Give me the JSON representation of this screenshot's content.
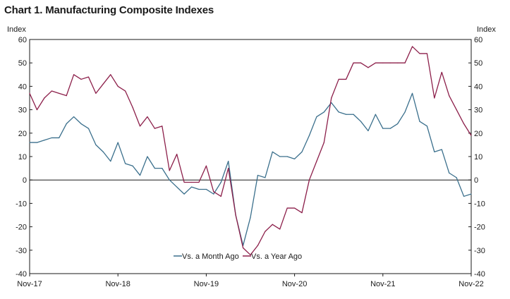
{
  "chart_data": {
    "type": "line",
    "title": "Chart 1. Manufacturing Composite Indexes",
    "ylabel_left": "Index",
    "ylabel_right": "Index",
    "ylim": [
      -40,
      60
    ],
    "yticks": [
      -40,
      -30,
      -20,
      -10,
      0,
      10,
      20,
      30,
      40,
      50,
      60
    ],
    "x_tick_labels": [
      "Nov-17",
      "Nov-18",
      "Nov-19",
      "Nov-20",
      "Nov-21",
      "Nov-22"
    ],
    "x_start": "Nov-17",
    "x_end": "Nov-22",
    "grid": false,
    "legend_position": "bottom-center",
    "series": [
      {
        "name": "Vs. a Month Ago",
        "color": "#3a6f8c",
        "values": [
          16,
          16,
          17,
          18,
          18,
          24,
          27,
          24,
          22,
          15,
          12,
          8,
          16,
          7,
          6,
          2,
          10,
          5,
          5,
          0,
          -3,
          -6,
          -3,
          -4,
          -4,
          -6,
          -1,
          8,
          -15,
          -28,
          -16,
          2,
          1,
          12,
          10,
          10,
          9,
          12,
          19,
          27,
          29,
          33,
          29,
          28,
          28,
          25,
          21,
          28,
          22,
          22,
          24,
          29,
          37,
          25,
          23,
          12,
          13,
          3,
          1,
          -7,
          -6
        ]
      },
      {
        "name": "Vs. a Year Ago",
        "color": "#8c1f4a",
        "values": [
          37,
          30,
          35,
          38,
          37,
          36,
          45,
          43,
          44,
          37,
          41,
          45,
          40,
          38,
          31,
          23,
          27,
          22,
          23,
          4,
          11,
          -1,
          -1,
          -1,
          6,
          -5,
          -7,
          5,
          -15,
          -29,
          -32,
          -28,
          -22,
          -19,
          -21,
          -12,
          -12,
          -14,
          0,
          8,
          16,
          35,
          43,
          43,
          50,
          50,
          48,
          50,
          50,
          50,
          50,
          50,
          57,
          54,
          54,
          35,
          46,
          36,
          30,
          24,
          19
        ]
      }
    ]
  }
}
